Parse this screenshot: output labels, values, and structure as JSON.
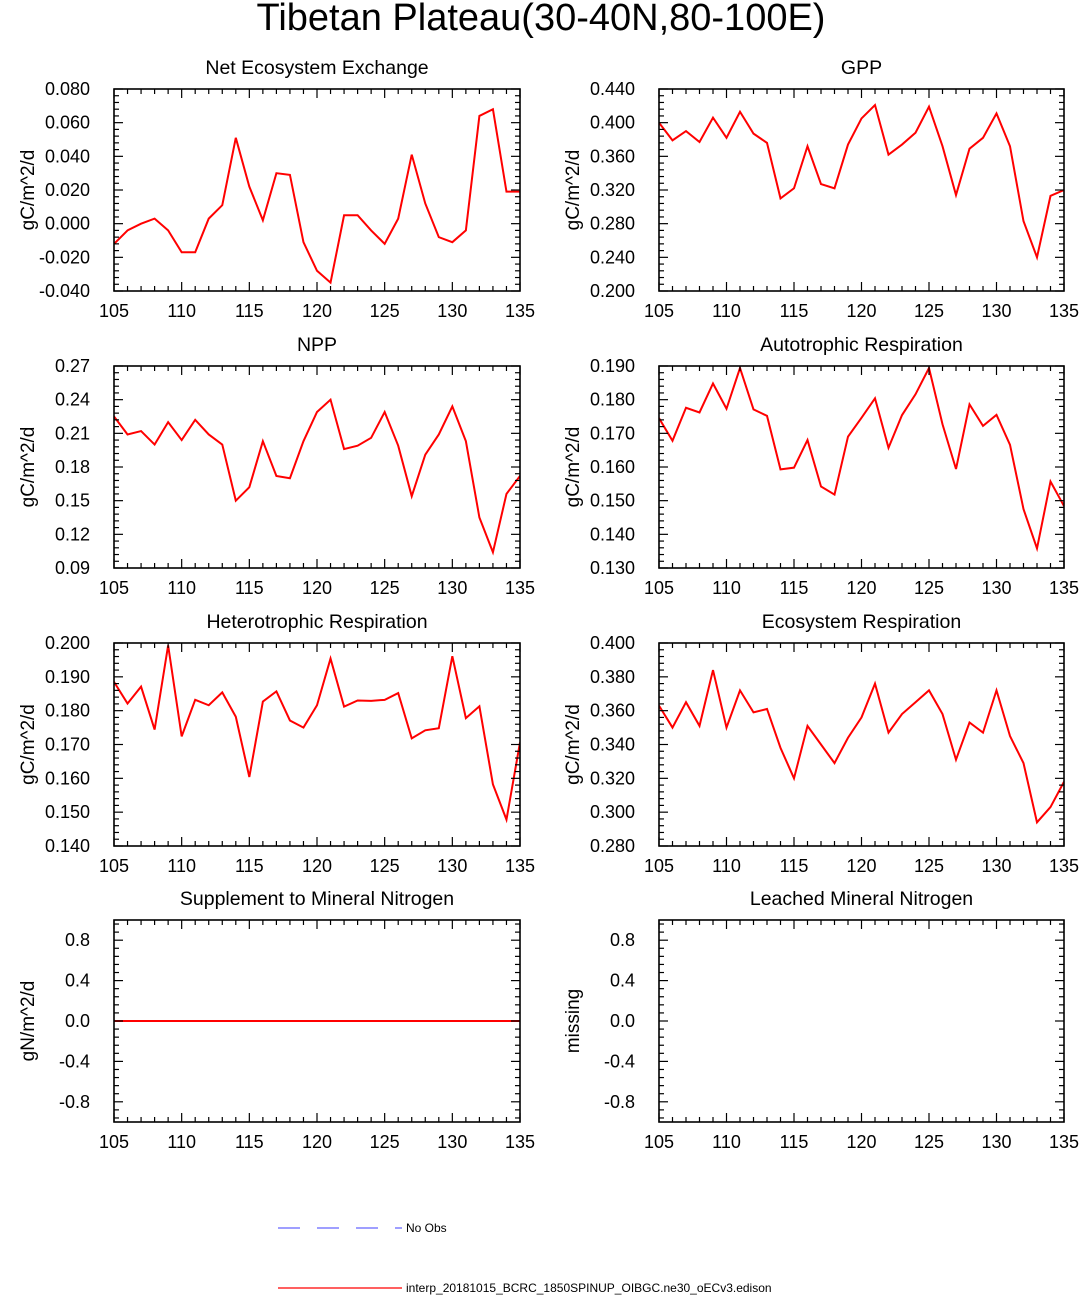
{
  "figure": {
    "title": "Tibetan Plateau(30-40N,80-100E)"
  },
  "colors": {
    "model_line": "#ff0000",
    "obs_line": "#6666ff",
    "axis": "#000000"
  },
  "legend": {
    "items": [
      {
        "label": "No Obs",
        "style": "dashed",
        "color": "#6666ff"
      },
      {
        "label": "interp_20181015_BCRC_1850SPINUP_OIBGC.ne30_oECv3.edison",
        "style": "solid",
        "color": "#ff0000"
      }
    ]
  },
  "chart_data": [
    {
      "type": "line",
      "title": "Net Ecosystem Exchange",
      "ylabel": "gC/m^2/d",
      "xlim": [
        105,
        135
      ],
      "ylim": [
        -0.04,
        0.08
      ],
      "xticks": [
        105,
        110,
        115,
        120,
        125,
        130,
        135
      ],
      "yticks": [
        -0.04,
        -0.02,
        0.0,
        0.02,
        0.04,
        0.06,
        0.08
      ],
      "ytick_labels": [
        "-0.040",
        "-0.020",
        "0.000",
        "0.020",
        "0.040",
        "0.060",
        "0.080"
      ],
      "x": [
        105,
        106,
        107,
        108,
        109,
        110,
        111,
        112,
        113,
        114,
        115,
        116,
        117,
        118,
        119,
        120,
        121,
        122,
        123,
        124,
        125,
        126,
        127,
        128,
        129,
        130,
        131,
        132,
        133,
        134,
        135
      ],
      "series": [
        {
          "color": "#ff0000",
          "values": [
            -0.012,
            -0.004,
            0.0,
            0.003,
            -0.004,
            -0.017,
            -0.017,
            0.003,
            0.011,
            0.051,
            0.022,
            0.002,
            0.03,
            0.029,
            -0.011,
            -0.028,
            -0.035,
            0.005,
            0.005,
            -0.004,
            -0.012,
            0.003,
            0.041,
            0.012,
            -0.008,
            -0.011,
            -0.004,
            0.064,
            0.068,
            0.019,
            0.019
          ]
        }
      ]
    },
    {
      "type": "line",
      "title": "GPP",
      "ylabel": "gC/m^2/d",
      "xlim": [
        105,
        135
      ],
      "ylim": [
        0.2,
        0.44
      ],
      "xticks": [
        105,
        110,
        115,
        120,
        125,
        130,
        135
      ],
      "yticks": [
        0.2,
        0.24,
        0.28,
        0.32,
        0.36,
        0.4,
        0.44
      ],
      "ytick_labels": [
        "0.200",
        "0.240",
        "0.280",
        "0.320",
        "0.360",
        "0.400",
        "0.440"
      ],
      "x": [
        105,
        106,
        107,
        108,
        109,
        110,
        111,
        112,
        113,
        114,
        115,
        116,
        117,
        118,
        119,
        120,
        121,
        122,
        123,
        124,
        125,
        126,
        127,
        128,
        129,
        130,
        131,
        132,
        133,
        134,
        135
      ],
      "series": [
        {
          "color": "#ff0000",
          "values": [
            0.4,
            0.379,
            0.39,
            0.377,
            0.406,
            0.382,
            0.413,
            0.387,
            0.376,
            0.31,
            0.322,
            0.372,
            0.327,
            0.322,
            0.374,
            0.405,
            0.421,
            0.362,
            0.374,
            0.388,
            0.419,
            0.372,
            0.314,
            0.369,
            0.382,
            0.411,
            0.372,
            0.283,
            0.24,
            0.313,
            0.32
          ]
        }
      ]
    },
    {
      "type": "line",
      "title": "NPP",
      "ylabel": "gC/m^2/d",
      "xlim": [
        105,
        135
      ],
      "ylim": [
        0.09,
        0.27
      ],
      "xticks": [
        105,
        110,
        115,
        120,
        125,
        130,
        135
      ],
      "yticks": [
        0.09,
        0.12,
        0.15,
        0.18,
        0.21,
        0.24,
        0.27
      ],
      "ytick_labels": [
        "0.09",
        "0.12",
        "0.15",
        "0.18",
        "0.21",
        "0.24",
        "0.27"
      ],
      "x": [
        105,
        106,
        107,
        108,
        109,
        110,
        111,
        112,
        113,
        114,
        115,
        116,
        117,
        118,
        119,
        120,
        121,
        122,
        123,
        124,
        125,
        126,
        127,
        128,
        129,
        130,
        131,
        132,
        133,
        134,
        135
      ],
      "series": [
        {
          "color": "#ff0000",
          "values": [
            0.225,
            0.209,
            0.212,
            0.2,
            0.22,
            0.204,
            0.222,
            0.209,
            0.2,
            0.15,
            0.162,
            0.203,
            0.172,
            0.17,
            0.203,
            0.229,
            0.24,
            0.196,
            0.199,
            0.206,
            0.229,
            0.199,
            0.154,
            0.191,
            0.209,
            0.234,
            0.203,
            0.135,
            0.104,
            0.156,
            0.172
          ]
        }
      ]
    },
    {
      "type": "line",
      "title": "Autotrophic Respiration",
      "ylabel": "gC/m^2/d",
      "xlim": [
        105,
        135
      ],
      "ylim": [
        0.13,
        0.19
      ],
      "xticks": [
        105,
        110,
        115,
        120,
        125,
        130,
        135
      ],
      "yticks": [
        0.13,
        0.14,
        0.15,
        0.16,
        0.17,
        0.18,
        0.19
      ],
      "ytick_labels": [
        "0.130",
        "0.140",
        "0.150",
        "0.160",
        "0.170",
        "0.180",
        "0.190"
      ],
      "x": [
        105,
        106,
        107,
        108,
        109,
        110,
        111,
        112,
        113,
        114,
        115,
        116,
        117,
        118,
        119,
        120,
        121,
        122,
        123,
        124,
        125,
        126,
        127,
        128,
        129,
        130,
        131,
        132,
        133,
        134,
        135
      ],
      "series": [
        {
          "color": "#ff0000",
          "values": [
            0.1745,
            0.1678,
            0.1776,
            0.1762,
            0.1848,
            0.1773,
            0.1894,
            0.1771,
            0.1752,
            0.1593,
            0.1598,
            0.168,
            0.1542,
            0.1518,
            0.169,
            0.1746,
            0.1804,
            0.1657,
            0.1754,
            0.1816,
            0.1894,
            0.1727,
            0.1594,
            0.1786,
            0.1722,
            0.1755,
            0.1666,
            0.1475,
            0.1358,
            0.1557,
            0.1484
          ]
        }
      ]
    },
    {
      "type": "line",
      "title": "Heterotrophic Respiration",
      "ylabel": "gC/m^2/d",
      "xlim": [
        105,
        135
      ],
      "ylim": [
        0.14,
        0.2
      ],
      "xticks": [
        105,
        110,
        115,
        120,
        125,
        130,
        135
      ],
      "yticks": [
        0.14,
        0.15,
        0.16,
        0.17,
        0.18,
        0.19,
        0.2
      ],
      "ytick_labels": [
        "0.140",
        "0.150",
        "0.160",
        "0.170",
        "0.180",
        "0.190",
        "0.200"
      ],
      "x": [
        105,
        106,
        107,
        108,
        109,
        110,
        111,
        112,
        113,
        114,
        115,
        116,
        117,
        118,
        119,
        120,
        121,
        122,
        123,
        124,
        125,
        126,
        127,
        128,
        129,
        130,
        131,
        132,
        133,
        134,
        135
      ],
      "series": [
        {
          "color": "#ff0000",
          "values": [
            0.1885,
            0.1821,
            0.1871,
            0.1744,
            0.1993,
            0.1724,
            0.1832,
            0.1816,
            0.1854,
            0.1782,
            0.1604,
            0.1827,
            0.1857,
            0.1771,
            0.175,
            0.1816,
            0.1954,
            0.1812,
            0.183,
            0.1829,
            0.1832,
            0.1852,
            0.1718,
            0.1742,
            0.1748,
            0.1961,
            0.1778,
            0.1813,
            0.1582,
            0.1478,
            0.1706
          ]
        }
      ]
    },
    {
      "type": "line",
      "title": "Ecosystem Respiration",
      "ylabel": "gC/m^2/d",
      "xlim": [
        105,
        135
      ],
      "ylim": [
        0.28,
        0.4
      ],
      "xticks": [
        105,
        110,
        115,
        120,
        125,
        130,
        135
      ],
      "yticks": [
        0.28,
        0.3,
        0.32,
        0.34,
        0.36,
        0.38,
        0.4
      ],
      "ytick_labels": [
        "0.280",
        "0.300",
        "0.320",
        "0.340",
        "0.360",
        "0.380",
        "0.400"
      ],
      "x": [
        105,
        106,
        107,
        108,
        109,
        110,
        111,
        112,
        113,
        114,
        115,
        116,
        117,
        118,
        119,
        120,
        121,
        122,
        123,
        124,
        125,
        126,
        127,
        128,
        129,
        130,
        131,
        132,
        133,
        134,
        135
      ],
      "series": [
        {
          "color": "#ff0000",
          "values": [
            0.363,
            0.35,
            0.365,
            0.351,
            0.384,
            0.35,
            0.372,
            0.359,
            0.361,
            0.338,
            0.32,
            0.351,
            0.34,
            0.329,
            0.344,
            0.356,
            0.376,
            0.347,
            0.358,
            0.365,
            0.372,
            0.358,
            0.331,
            0.353,
            0.347,
            0.372,
            0.345,
            0.329,
            0.294,
            0.303,
            0.318
          ]
        }
      ]
    },
    {
      "type": "line",
      "title": "Supplement to Mineral Nitrogen",
      "ylabel": "gN/m^2/d",
      "xlim": [
        105,
        135
      ],
      "ylim": [
        -1.0,
        1.0
      ],
      "xticks": [
        105,
        110,
        115,
        120,
        125,
        130,
        135
      ],
      "yticks": [
        -0.8,
        -0.4,
        0.0,
        0.4,
        0.8
      ],
      "ytick_labels": [
        "-0.8",
        "-0.4",
        "0.0",
        "0.4",
        "0.8"
      ],
      "x": [
        105,
        106,
        107,
        108,
        109,
        110,
        111,
        112,
        113,
        114,
        115,
        116,
        117,
        118,
        119,
        120,
        121,
        122,
        123,
        124,
        125,
        126,
        127,
        128,
        129,
        130,
        131,
        132,
        133,
        134,
        135
      ],
      "series": [
        {
          "color": "#ff0000",
          "values": [
            0,
            0,
            0,
            0,
            0,
            0,
            0,
            0,
            0,
            0,
            0,
            0,
            0,
            0,
            0,
            0,
            0,
            0,
            0,
            0,
            0,
            0,
            0,
            0,
            0,
            0,
            0,
            0,
            0,
            0,
            0
          ]
        }
      ]
    },
    {
      "type": "line",
      "title": "Leached Mineral Nitrogen",
      "ylabel": "missing",
      "xlim": [
        105,
        135
      ],
      "ylim": [
        -1.0,
        1.0
      ],
      "xticks": [
        105,
        110,
        115,
        120,
        125,
        130,
        135
      ],
      "yticks": [
        -0.8,
        -0.4,
        0.0,
        0.4,
        0.8
      ],
      "ytick_labels": [
        "-0.8",
        "-0.4",
        "0.0",
        "0.4",
        "0.8"
      ],
      "x": [],
      "series": []
    }
  ]
}
